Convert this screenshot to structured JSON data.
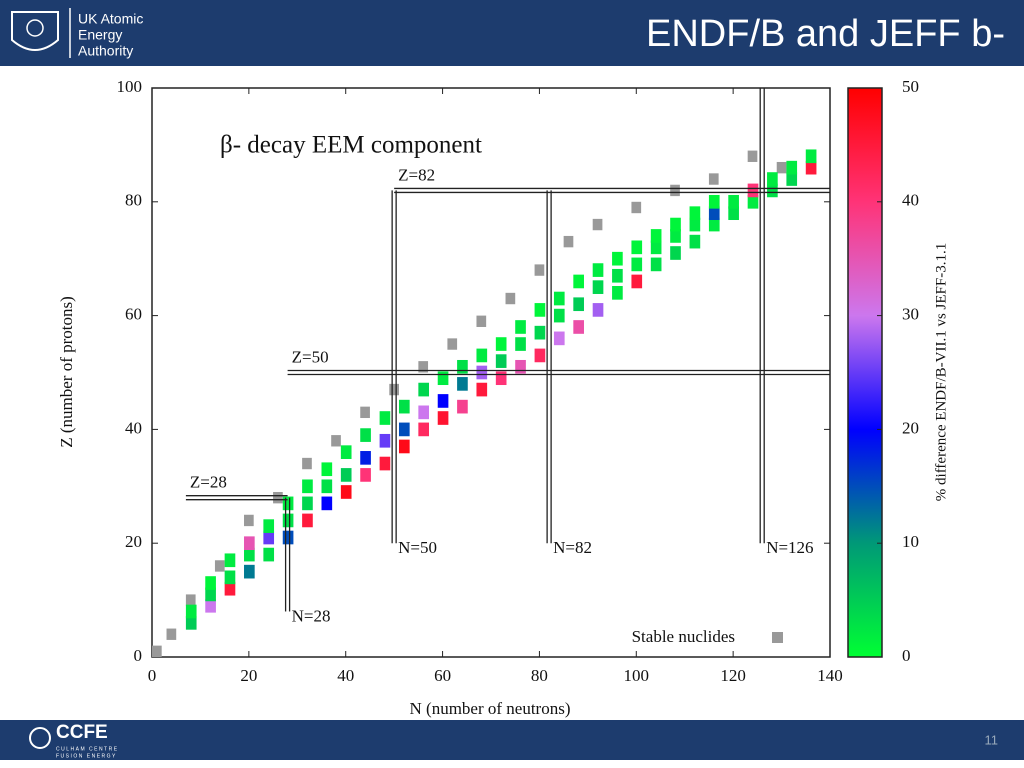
{
  "header": {
    "org_lines": [
      "UK Atomic",
      "Energy",
      "Authority"
    ],
    "title": "ENDF/B and JEFF b-"
  },
  "footer": {
    "logo": "CCFE",
    "sub_lines": [
      "CULHAM CENTRE",
      "FUSION ENERGY"
    ],
    "page": "11"
  },
  "chart_data": {
    "type": "heatmap",
    "title": "β- decay EEM component",
    "xlabel": "N (number of neutrons)",
    "ylabel": "Z (number of protons)",
    "xlim": [
      0,
      140
    ],
    "xticks": [
      0,
      20,
      40,
      60,
      80,
      100,
      120,
      140
    ],
    "ylim": [
      0,
      100
    ],
    "yticks": [
      0,
      20,
      40,
      60,
      80,
      100
    ],
    "colorbar": {
      "label": "% difference ENDF/B-VII.1 vs JEFF-3.1.1",
      "lim": [
        0,
        50
      ],
      "ticks": [
        0,
        10,
        20,
        30,
        40,
        50
      ],
      "colormap": [
        "#00ff33",
        "#009977",
        "#0000ff",
        "#cc77ee",
        "#ff3377",
        "#ff0000"
      ]
    },
    "points": {
      "x": [
        8,
        8,
        12,
        12,
        12,
        16,
        16,
        16,
        20,
        20,
        20,
        24,
        24,
        24,
        28,
        28,
        28,
        32,
        32,
        32,
        36,
        36,
        36,
        40,
        40,
        40,
        44,
        44,
        44,
        48,
        48,
        48,
        52,
        52,
        52,
        56,
        56,
        56,
        60,
        60,
        60,
        64,
        64,
        64,
        68,
        68,
        68,
        72,
        72,
        72,
        76,
        76,
        76,
        80,
        80,
        80,
        84,
        84,
        84,
        88,
        88,
        88,
        92,
        92,
        92,
        96,
        96,
        96,
        100,
        100,
        100,
        104,
        104,
        104,
        108,
        108,
        108,
        112,
        112,
        112,
        116,
        116,
        116,
        120,
        120,
        124,
        124,
        128,
        128,
        132,
        132,
        136,
        136
      ],
      "y": [
        6,
        8,
        9,
        11,
        13,
        12,
        14,
        17,
        15,
        18,
        20,
        18,
        21,
        23,
        21,
        24,
        27,
        24,
        27,
        30,
        27,
        30,
        33,
        29,
        32,
        36,
        32,
        35,
        39,
        34,
        38,
        42,
        37,
        40,
        44,
        40,
        43,
        47,
        42,
        45,
        49,
        44,
        48,
        51,
        47,
        50,
        53,
        49,
        52,
        55,
        51,
        55,
        58,
        53,
        57,
        61,
        56,
        60,
        63,
        58,
        62,
        66,
        61,
        65,
        68,
        64,
        67,
        70,
        66,
        69,
        72,
        69,
        72,
        74,
        71,
        74,
        76,
        73,
        76,
        78,
        76,
        78,
        80,
        78,
        80,
        80,
        82,
        82,
        84,
        84,
        86,
        86,
        88
      ],
      "values": [
        5,
        2,
        30,
        4,
        1,
        45,
        3,
        2,
        12,
        3,
        35,
        3,
        25,
        2,
        15,
        3,
        2,
        45,
        4,
        2,
        20,
        3,
        1,
        48,
        5,
        2,
        40,
        18,
        3,
        45,
        25,
        2,
        48,
        15,
        3,
        42,
        30,
        4,
        46,
        20,
        2,
        38,
        12,
        3,
        45,
        28,
        2,
        40,
        5,
        1,
        35,
        3,
        2,
        42,
        4,
        1,
        30,
        3,
        2,
        36,
        5,
        1,
        28,
        4,
        2,
        2,
        3,
        1,
        45,
        2,
        1,
        3,
        2,
        1,
        4,
        2,
        1,
        3,
        2,
        1,
        2,
        15,
        1,
        3,
        2,
        2,
        40,
        3,
        2,
        4,
        2,
        45,
        2
      ]
    },
    "series": [
      {
        "name": "Stable nuclides",
        "color": "#999999",
        "x": [
          1,
          4,
          8,
          14,
          20,
          26,
          32,
          38,
          44,
          50,
          56,
          62,
          68,
          74,
          80,
          86,
          92,
          100,
          108,
          116,
          124,
          130
        ],
        "y": [
          1,
          4,
          10,
          16,
          24,
          28,
          34,
          38,
          43,
          47,
          51,
          55,
          59,
          63,
          68,
          73,
          76,
          79,
          82,
          84,
          88,
          86
        ]
      }
    ],
    "annotations": [
      {
        "label": "Z=28",
        "axis": "y",
        "value": 28,
        "span": [
          7,
          28
        ]
      },
      {
        "label": "Z=50",
        "axis": "y",
        "value": 50,
        "span": [
          28,
          140
        ]
      },
      {
        "label": "Z=82",
        "axis": "y",
        "value": 82,
        "span": [
          50,
          140
        ]
      },
      {
        "label": "N=28",
        "axis": "x",
        "value": 28,
        "span": [
          8,
          28
        ]
      },
      {
        "label": "N=50",
        "axis": "x",
        "value": 50,
        "span": [
          20,
          82
        ]
      },
      {
        "label": "N=82",
        "axis": "x",
        "value": 82,
        "span": [
          20,
          82
        ]
      },
      {
        "label": "N=126",
        "axis": "x",
        "value": 126,
        "span": [
          20,
          100
        ]
      }
    ]
  }
}
